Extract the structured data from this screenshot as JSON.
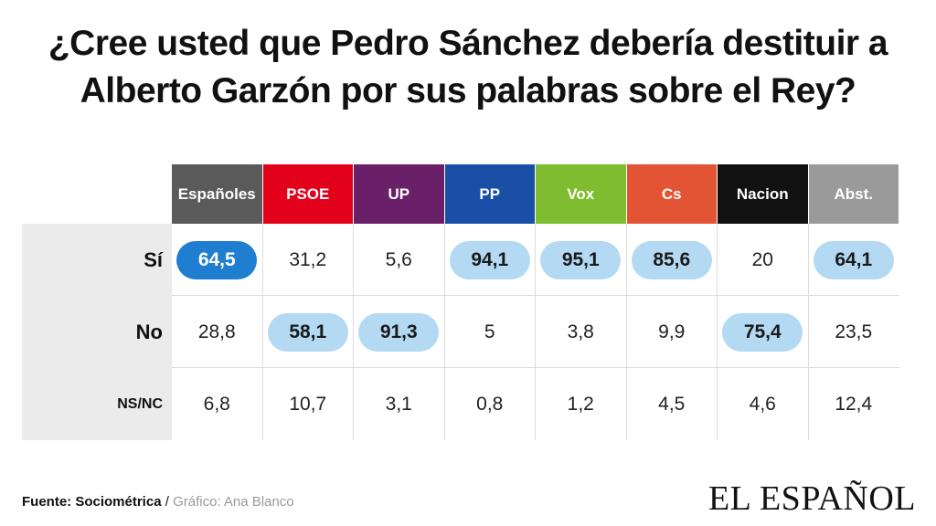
{
  "title_line1": "¿Cree usted que Pedro Sánchez debería destituir a",
  "title_line2": "Alberto Garzón por sus palabras sobre el Rey?",
  "chart_data": {
    "type": "table",
    "columns": [
      {
        "label": "Españoles",
        "color": "#5a5a5a"
      },
      {
        "label": "PSOE",
        "color": "#e3001b"
      },
      {
        "label": "UP",
        "color": "#6a2068"
      },
      {
        "label": "PP",
        "color": "#1a4fa8"
      },
      {
        "label": "Vox",
        "color": "#7fbc2f"
      },
      {
        "label": "Cs",
        "color": "#e35434"
      },
      {
        "label": "Nacion",
        "color": "#111111"
      },
      {
        "label": "Abst.",
        "color": "#9a9a9a"
      }
    ],
    "rows": [
      {
        "label": "Sí",
        "values": [
          "64,5",
          "31,2",
          "5,6",
          "94,1",
          "95,1",
          "85,6",
          "20",
          "64,1"
        ]
      },
      {
        "label": "No",
        "values": [
          "28,8",
          "58,1",
          "91,3",
          "5",
          "3,8",
          "9,9",
          "75,4",
          "23,5"
        ]
      },
      {
        "label": "NS/NC",
        "values": [
          "6,8",
          "10,7",
          "3,1",
          "0,8",
          "1,2",
          "4,5",
          "4,6",
          "12,4"
        ]
      }
    ],
    "highlight_color": "#b3d9f3",
    "highlight_strong_color": "#1f7ed0",
    "highlighted": [
      {
        "row": 0,
        "col": 0,
        "strong": true
      },
      {
        "row": 0,
        "col": 3
      },
      {
        "row": 0,
        "col": 4
      },
      {
        "row": 0,
        "col": 5
      },
      {
        "row": 0,
        "col": 7
      },
      {
        "row": 1,
        "col": 1
      },
      {
        "row": 1,
        "col": 2
      },
      {
        "row": 1,
        "col": 6
      }
    ]
  },
  "source": {
    "label": "Fuente: Sociométrica",
    "separator": "/",
    "author": "Gráfico: Ana Blanco"
  },
  "logo": "EL ESPAÑOL"
}
